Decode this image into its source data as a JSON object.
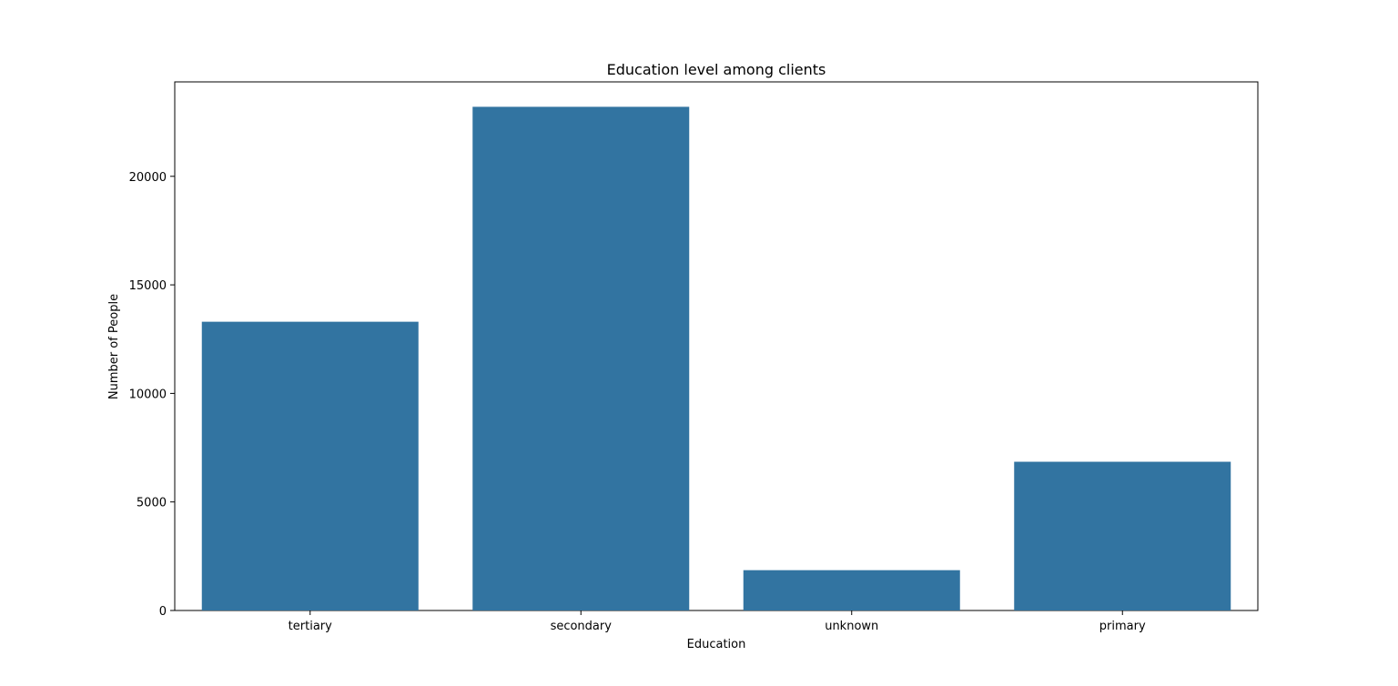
{
  "chart_data": {
    "type": "bar",
    "title": "Education level among clients",
    "xlabel": "Education",
    "ylabel": "Number of People",
    "categories": [
      "tertiary",
      "secondary",
      "unknown",
      "primary"
    ],
    "values": [
      13301,
      23202,
      1857,
      6851
    ],
    "ylim": [
      0,
      24350
    ],
    "yticks": [
      0,
      5000,
      10000,
      15000,
      20000
    ],
    "ytick_labels": [
      "0",
      "5000",
      "10000",
      "15000",
      "20000"
    ],
    "grid": false,
    "legend": "none",
    "bar_color": "#3274a1"
  }
}
